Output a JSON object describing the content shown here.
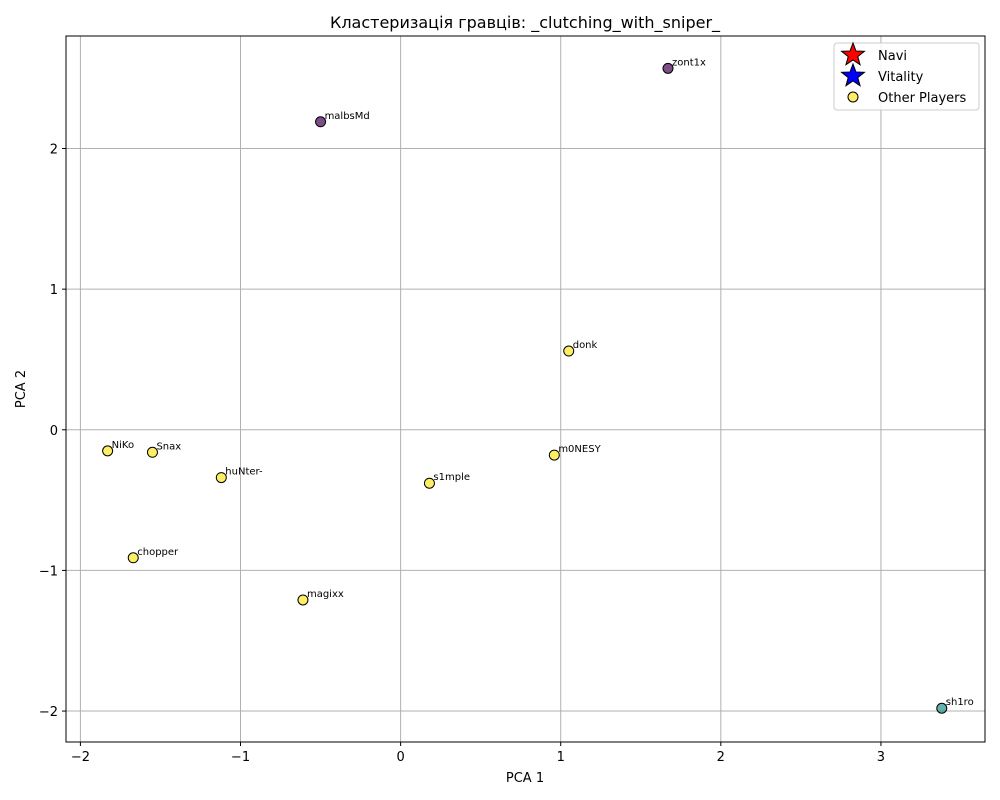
{
  "chart_data": {
    "type": "scatter",
    "title": "Кластеризація гравців: _clutching_with_sniper_",
    "xlabel": "PCA 1",
    "ylabel": "PCA 2",
    "xlim": [
      -2.09,
      3.65
    ],
    "ylim": [
      -2.22,
      2.8
    ],
    "xticks": [
      -2,
      -1,
      0,
      1,
      2,
      3
    ],
    "yticks": [
      -2,
      -1,
      0,
      1,
      2
    ],
    "xtick_labels": [
      "−2",
      "−1",
      "0",
      "1",
      "2",
      "3"
    ],
    "ytick_labels": [
      "−2",
      "−1",
      "0",
      "1",
      "2"
    ],
    "grid": true,
    "legend_position": "top-right",
    "legend": [
      {
        "label": "Navi",
        "marker": "star",
        "color": "#ff0000"
      },
      {
        "label": "Vitality",
        "marker": "star",
        "color": "#0000ff"
      },
      {
        "label": "Other Players",
        "marker": "circle",
        "color": "#fde725"
      }
    ],
    "points": [
      {
        "label": "zont1x",
        "x": 1.67,
        "y": 2.57,
        "color": "#440154"
      },
      {
        "label": "malbsMd",
        "x": -0.5,
        "y": 2.19,
        "color": "#440154"
      },
      {
        "label": "donk",
        "x": 1.05,
        "y": 0.56,
        "color": "#fde725"
      },
      {
        "label": "NiKo",
        "x": -1.83,
        "y": -0.15,
        "color": "#fde725"
      },
      {
        "label": "Snax",
        "x": -1.55,
        "y": -0.16,
        "color": "#fde725"
      },
      {
        "label": "m0NESY",
        "x": 0.96,
        "y": -0.18,
        "color": "#fde725"
      },
      {
        "label": "huNter-",
        "x": -1.12,
        "y": -0.34,
        "color": "#fde725"
      },
      {
        "label": "s1mple",
        "x": 0.18,
        "y": -0.38,
        "color": "#fde725"
      },
      {
        "label": "chopper",
        "x": -1.67,
        "y": -0.91,
        "color": "#fde725"
      },
      {
        "label": "magixx",
        "x": -0.61,
        "y": -1.21,
        "color": "#fde725"
      },
      {
        "label": "sh1ro",
        "x": 3.38,
        "y": -1.98,
        "color": "#21918c"
      }
    ]
  }
}
